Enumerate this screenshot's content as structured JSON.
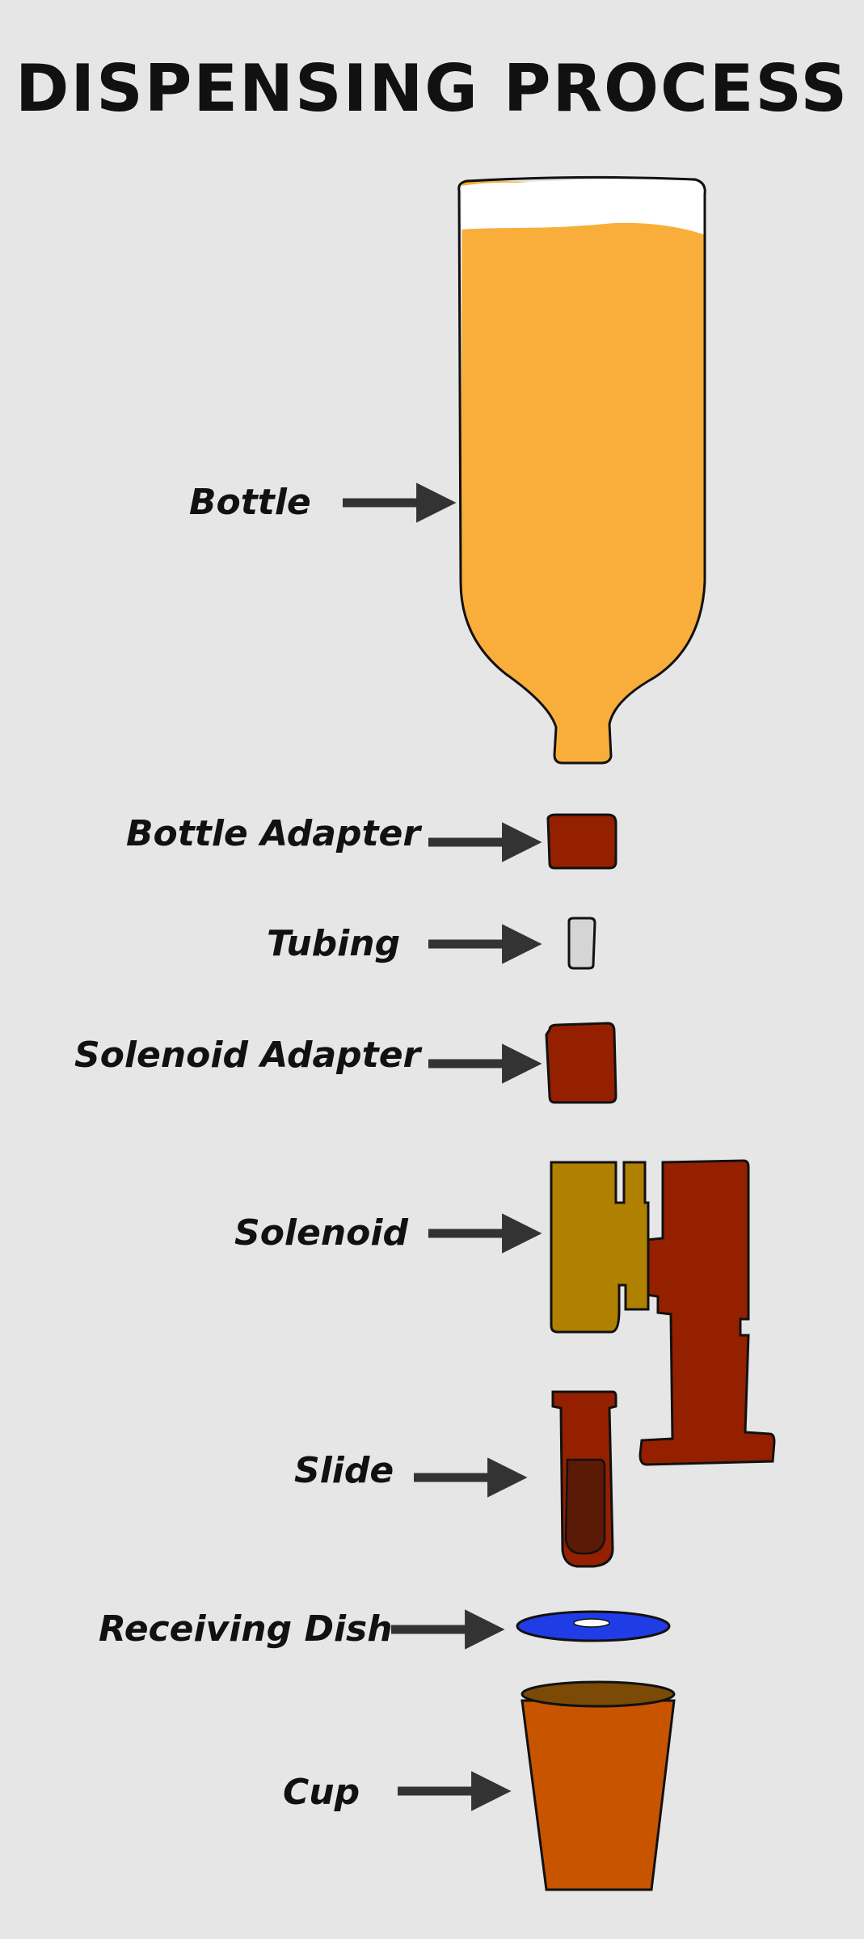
{
  "title": "DISPENSING PROCESS",
  "components": [
    {
      "label": "Bottle",
      "color": "#f9ae3b"
    },
    {
      "label": "Bottle Adapter",
      "color": "#952000"
    },
    {
      "label": "Tubing",
      "color": "#d5d5d5"
    },
    {
      "label": "Solenoid Adapter",
      "color": "#952000"
    },
    {
      "label": "Solenoid",
      "color": "#952000",
      "accent_color": "#b08000"
    },
    {
      "label": "Slide",
      "color": "#952000",
      "accent_color": "#5a1a05"
    },
    {
      "label": "Receiving Dish",
      "color": "#1f3ce6"
    },
    {
      "label": "Cup",
      "color": "#c85400",
      "accent_color": "#7a4a06"
    }
  ],
  "colors": {
    "background": "#e6e6e6",
    "text": "#111111",
    "arrow": "#333333",
    "outline": "#111111"
  }
}
